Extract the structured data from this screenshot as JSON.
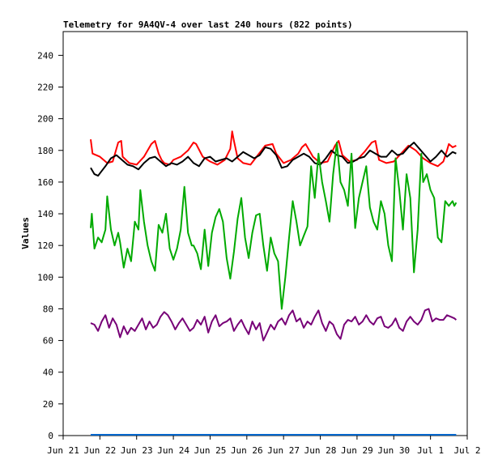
{
  "chart_data": {
    "type": "line",
    "title": "Telemetry for 9A4QV-4 over last 240 hours (822 points)",
    "xlabel": "",
    "ylabel": "Values",
    "ylim": [
      0,
      255
    ],
    "yticks": [
      0,
      20,
      40,
      60,
      80,
      100,
      120,
      140,
      160,
      180,
      200,
      220,
      240
    ],
    "xlim": [
      0,
      11
    ],
    "xticks": [
      {
        "label": "Jun 21",
        "x": 0
      },
      {
        "label": "Jun 22",
        "x": 1
      },
      {
        "label": "Jun 23",
        "x": 2
      },
      {
        "label": "Jun 24",
        "x": 3
      },
      {
        "label": "Jun 25",
        "x": 4
      },
      {
        "label": "Jun 26",
        "x": 5
      },
      {
        "label": "Jun 27",
        "x": 6
      },
      {
        "label": "Jun 28",
        "x": 7
      },
      {
        "label": "Jun 29",
        "x": 8
      },
      {
        "label": "Jun 30",
        "x": 9
      },
      {
        "label": "Jul 1",
        "x": 10
      },
      {
        "label": "Jul 2",
        "x": 11
      }
    ],
    "grid": false,
    "series": [
      {
        "color": "#ff0000",
        "x": [
          0.75,
          0.8,
          1.0,
          1.2,
          1.35,
          1.5,
          1.58,
          1.62,
          1.8,
          2.0,
          2.2,
          2.4,
          2.5,
          2.6,
          2.68,
          2.75,
          2.9,
          3.0,
          3.2,
          3.4,
          3.55,
          3.62,
          3.8,
          4.0,
          4.2,
          4.4,
          4.55,
          4.6,
          4.65,
          4.75,
          4.9,
          5.1,
          5.3,
          5.5,
          5.7,
          5.8,
          6.0,
          6.2,
          6.4,
          6.5,
          6.6,
          6.8,
          7.0,
          7.2,
          7.4,
          7.5,
          7.6,
          7.8,
          8.0,
          8.2,
          8.4,
          8.5,
          8.6,
          8.8,
          9.0,
          9.2,
          9.4,
          9.6,
          9.8,
          10.0,
          10.2,
          10.35,
          10.45,
          10.5,
          10.6,
          10.7
        ],
        "y": [
          187,
          178,
          176,
          172,
          173,
          185,
          186,
          176,
          172,
          171,
          176,
          184,
          186,
          178,
          174,
          172,
          171,
          174,
          176,
          180,
          185,
          184,
          176,
          173,
          171,
          174,
          181,
          192,
          186,
          175,
          172,
          171,
          177,
          183,
          184,
          178,
          172,
          174,
          178,
          182,
          184,
          176,
          172,
          173,
          183,
          186,
          177,
          173,
          174,
          179,
          185,
          186,
          174,
          172,
          173,
          178,
          183,
          180,
          175,
          172,
          170,
          173,
          180,
          184,
          182,
          183
        ]
      },
      {
        "color": "#000000",
        "x": [
          0.75,
          0.85,
          0.95,
          1.05,
          1.15,
          1.3,
          1.45,
          1.6,
          1.75,
          1.9,
          2.05,
          2.2,
          2.35,
          2.5,
          2.65,
          2.8,
          2.95,
          3.1,
          3.25,
          3.4,
          3.55,
          3.7,
          3.85,
          4.0,
          4.15,
          4.3,
          4.45,
          4.6,
          4.75,
          4.9,
          5.05,
          5.2,
          5.35,
          5.5,
          5.65,
          5.8,
          5.95,
          6.1,
          6.25,
          6.4,
          6.55,
          6.7,
          6.85,
          7.0,
          7.15,
          7.3,
          7.45,
          7.6,
          7.75,
          7.9,
          8.05,
          8.2,
          8.35,
          8.5,
          8.65,
          8.8,
          8.95,
          9.1,
          9.25,
          9.4,
          9.55,
          9.7,
          9.85,
          10.0,
          10.15,
          10.3,
          10.45,
          10.6,
          10.7
        ],
        "y": [
          169,
          165,
          164,
          167,
          170,
          175,
          177,
          174,
          171,
          170,
          168,
          172,
          175,
          176,
          173,
          170,
          172,
          171,
          173,
          176,
          172,
          170,
          175,
          176,
          173,
          174,
          175,
          173,
          176,
          179,
          177,
          175,
          177,
          182,
          181,
          177,
          169,
          170,
          174,
          176,
          178,
          176,
          172,
          171,
          175,
          180,
          177,
          176,
          172,
          173,
          175,
          176,
          180,
          178,
          176,
          176,
          180,
          177,
          178,
          182,
          185,
          181,
          177,
          173,
          176,
          180,
          176,
          179,
          178
        ]
      },
      {
        "color": "#00aa00",
        "x": [
          0.75,
          0.78,
          0.85,
          0.95,
          1.05,
          1.15,
          1.2,
          1.3,
          1.4,
          1.5,
          1.55,
          1.65,
          1.75,
          1.85,
          1.95,
          2.05,
          2.1,
          2.2,
          2.3,
          2.4,
          2.5,
          2.6,
          2.7,
          2.8,
          2.9,
          3.0,
          3.1,
          3.2,
          3.3,
          3.4,
          3.5,
          3.55,
          3.65,
          3.75,
          3.85,
          3.95,
          4.05,
          4.15,
          4.25,
          4.35,
          4.45,
          4.55,
          4.65,
          4.75,
          4.85,
          4.95,
          5.05,
          5.15,
          5.25,
          5.35,
          5.45,
          5.55,
          5.65,
          5.75,
          5.85,
          5.95,
          6.05,
          6.15,
          6.25,
          6.35,
          6.45,
          6.55,
          6.65,
          6.75,
          6.85,
          6.95,
          7.05,
          7.15,
          7.25,
          7.35,
          7.45,
          7.55,
          7.65,
          7.75,
          7.85,
          7.95,
          8.05,
          8.15,
          8.25,
          8.35,
          8.45,
          8.55,
          8.65,
          8.75,
          8.85,
          8.95,
          9.05,
          9.15,
          9.25,
          9.35,
          9.45,
          9.55,
          9.65,
          9.75,
          9.8,
          9.9,
          10.0,
          10.1,
          10.2,
          10.3,
          10.4,
          10.5,
          10.6,
          10.65,
          10.7
        ],
        "y": [
          131,
          140,
          118,
          125,
          122,
          130,
          151,
          130,
          120,
          128,
          122,
          106,
          118,
          110,
          135,
          130,
          155,
          135,
          120,
          110,
          104,
          133,
          128,
          140,
          118,
          111,
          118,
          130,
          157,
          128,
          120,
          120,
          115,
          105,
          130,
          107,
          128,
          138,
          143,
          135,
          112,
          99,
          116,
          137,
          150,
          125,
          112,
          128,
          139,
          140,
          120,
          104,
          125,
          115,
          110,
          80,
          100,
          125,
          148,
          135,
          120,
          126,
          132,
          170,
          150,
          178,
          160,
          148,
          135,
          165,
          185,
          160,
          155,
          145,
          178,
          131,
          150,
          160,
          170,
          144,
          135,
          130,
          148,
          140,
          120,
          110,
          175,
          155,
          130,
          165,
          150,
          103,
          130,
          178,
          160,
          165,
          155,
          150,
          125,
          122,
          148,
          145,
          148,
          145,
          147
        ]
      },
      {
        "color": "#770077",
        "x": [
          0.75,
          0.85,
          0.95,
          1.05,
          1.15,
          1.25,
          1.35,
          1.45,
          1.55,
          1.65,
          1.75,
          1.85,
          1.95,
          2.05,
          2.15,
          2.25,
          2.35,
          2.45,
          2.55,
          2.65,
          2.75,
          2.85,
          2.95,
          3.05,
          3.15,
          3.25,
          3.35,
          3.45,
          3.55,
          3.65,
          3.75,
          3.85,
          3.95,
          4.05,
          4.15,
          4.25,
          4.35,
          4.45,
          4.55,
          4.65,
          4.75,
          4.85,
          4.95,
          5.05,
          5.15,
          5.25,
          5.35,
          5.45,
          5.55,
          5.65,
          5.75,
          5.85,
          5.95,
          6.05,
          6.15,
          6.25,
          6.35,
          6.45,
          6.55,
          6.65,
          6.75,
          6.85,
          6.95,
          7.05,
          7.15,
          7.25,
          7.35,
          7.45,
          7.55,
          7.65,
          7.75,
          7.85,
          7.95,
          8.05,
          8.15,
          8.25,
          8.35,
          8.45,
          8.55,
          8.65,
          8.75,
          8.85,
          8.95,
          9.05,
          9.15,
          9.25,
          9.35,
          9.45,
          9.55,
          9.65,
          9.75,
          9.85,
          9.95,
          10.05,
          10.15,
          10.25,
          10.35,
          10.45,
          10.55,
          10.65,
          10.7
        ],
        "y": [
          71,
          70,
          66,
          72,
          76,
          68,
          74,
          70,
          62,
          69,
          64,
          68,
          66,
          70,
          74,
          67,
          72,
          68,
          70,
          75,
          78,
          76,
          72,
          67,
          71,
          74,
          70,
          66,
          68,
          73,
          70,
          75,
          65,
          72,
          76,
          69,
          71,
          72,
          74,
          66,
          70,
          73,
          68,
          64,
          72,
          67,
          71,
          60,
          65,
          70,
          67,
          72,
          74,
          70,
          76,
          79,
          72,
          74,
          68,
          72,
          70,
          75,
          79,
          71,
          66,
          72,
          70,
          64,
          61,
          70,
          73,
          72,
          75,
          70,
          72,
          76,
          72,
          70,
          74,
          75,
          69,
          68,
          70,
          74,
          68,
          66,
          72,
          75,
          72,
          70,
          73,
          79,
          80,
          72,
          74,
          73,
          73,
          76,
          75,
          74,
          73
        ]
      },
      {
        "color": "#0066cc",
        "x": [
          0.75,
          10.7
        ],
        "y": [
          0.5,
          0.5
        ]
      }
    ]
  }
}
